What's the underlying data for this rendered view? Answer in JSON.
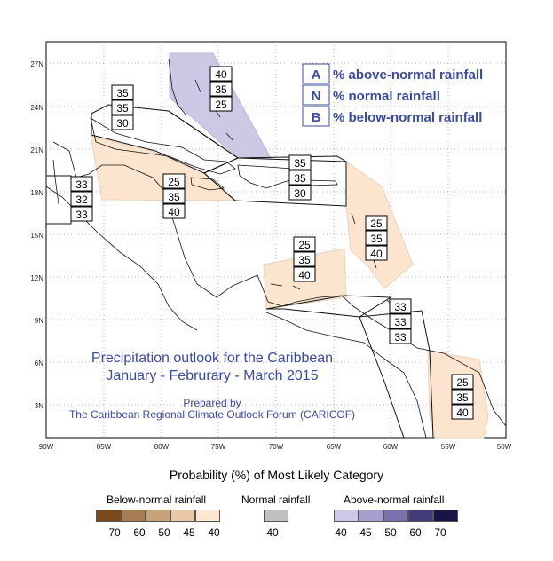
{
  "map": {
    "title_line1": "Precipitation outlook for the Caribbean",
    "title_line2": "January - Februrary - March 2015",
    "prepared_by": "Prepared by",
    "prepared_org": "The Caribbean Regional Climate Outlook Forum (CARICOF)",
    "lat_labels": [
      "27N",
      "24N",
      "21N",
      "18N",
      "15N",
      "12N",
      "9N",
      "6N",
      "3N"
    ],
    "lon_labels": [
      "90W",
      "85W",
      "80W",
      "75W",
      "70W",
      "65W",
      "60W",
      "55W",
      "50W"
    ],
    "key": [
      {
        "letter": "A",
        "text": "% above-normal rainfall"
      },
      {
        "letter": "N",
        "text": "% normal rainfall"
      },
      {
        "letter": "B",
        "text": "% below-normal rainfall"
      }
    ],
    "regions": [
      {
        "name": "bahamas",
        "values": [
          "40",
          "35",
          "25"
        ],
        "category": "above",
        "level": 40
      },
      {
        "name": "cuba",
        "values": [
          "35",
          "35",
          "30"
        ],
        "category": "none"
      },
      {
        "name": "belize",
        "values": [
          "33",
          "32",
          "33"
        ],
        "category": "none"
      },
      {
        "name": "jamaica",
        "values": [
          "25",
          "35",
          "40"
        ],
        "category": "below",
        "level": 40
      },
      {
        "name": "greater-antilles-east",
        "values": [
          "35",
          "35",
          "30"
        ],
        "category": "none"
      },
      {
        "name": "lesser-antilles",
        "values": [
          "25",
          "35",
          "40"
        ],
        "category": "below",
        "level": 40
      },
      {
        "name": "abc-islands",
        "values": [
          "25",
          "35",
          "40"
        ],
        "category": "below",
        "level": 40
      },
      {
        "name": "guyana",
        "values": [
          "33",
          "33",
          "33"
        ],
        "category": "none"
      },
      {
        "name": "suriname-french-guiana",
        "values": [
          "25",
          "35",
          "40"
        ],
        "category": "below",
        "level": 40
      }
    ]
  },
  "legend": {
    "title": "Probability (%) of Most Likely Category",
    "below": {
      "label": "Below-normal rainfall",
      "values": [
        "70",
        "60",
        "50",
        "45",
        "40"
      ],
      "colors": [
        "#7a4a1a",
        "#a67c52",
        "#c9a27a",
        "#e8c9a4",
        "#fbe7d2"
      ]
    },
    "normal": {
      "label": "Normal rainfall",
      "values": [
        "40"
      ],
      "colors": [
        "#c0c0c0"
      ]
    },
    "above": {
      "label": "Above-normal rainfall",
      "values": [
        "40",
        "45",
        "50",
        "60",
        "70"
      ],
      "colors": [
        "#ccc9e6",
        "#a49fcc",
        "#7a72ad",
        "#433c7a",
        "#1a1446"
      ]
    }
  },
  "colors": {
    "label_blue": "#3a4aa0",
    "below_fill": "#fbe5ce",
    "above_fill": "#cdc9e4"
  }
}
